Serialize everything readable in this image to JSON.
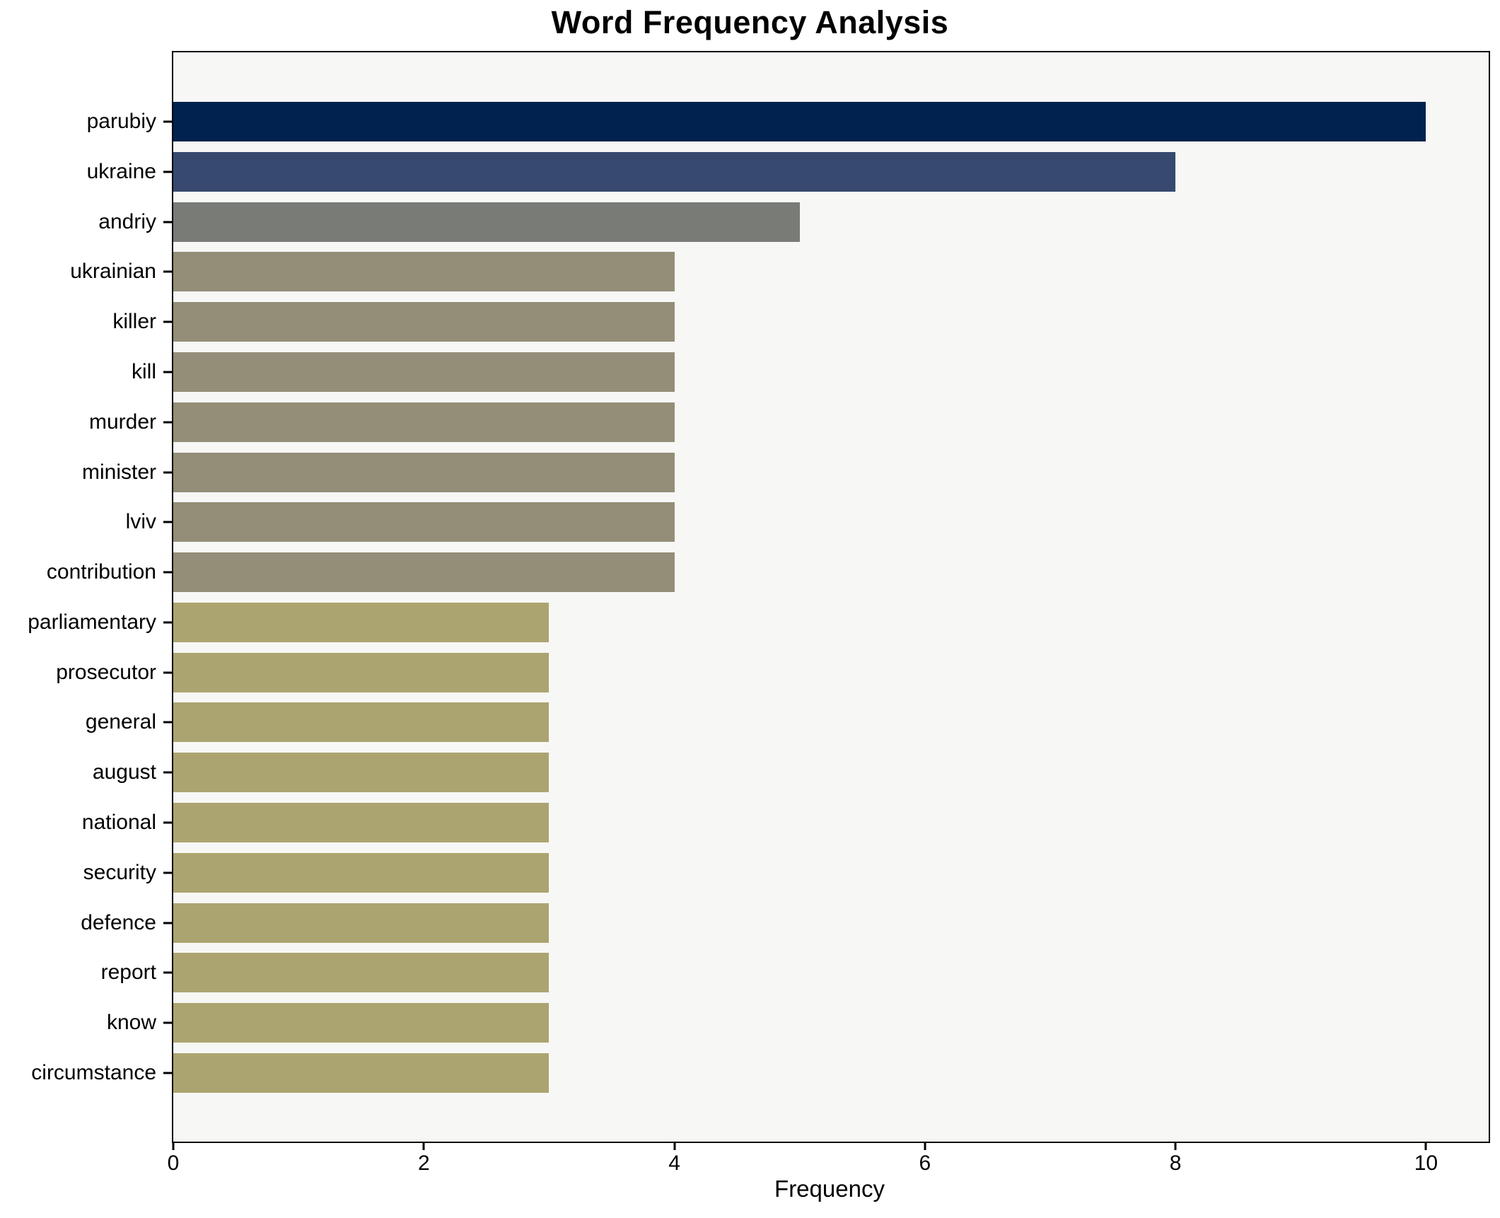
{
  "chart_data": {
    "type": "bar",
    "orientation": "horizontal",
    "title": "Word Frequency Analysis",
    "xlabel": "Frequency",
    "ylabel": "",
    "categories": [
      "parubiy",
      "ukraine",
      "andriy",
      "ukrainian",
      "killer",
      "kill",
      "murder",
      "minister",
      "lviv",
      "contribution",
      "parliamentary",
      "prosecutor",
      "general",
      "august",
      "national",
      "security",
      "defence",
      "report",
      "know",
      "circumstance"
    ],
    "values": [
      10,
      8,
      5,
      4,
      4,
      4,
      4,
      4,
      4,
      4,
      3,
      3,
      3,
      3,
      3,
      3,
      3,
      3,
      3,
      3
    ],
    "bar_colors": [
      "#01224e",
      "#37496e",
      "#797b77",
      "#948e78",
      "#948e78",
      "#948e78",
      "#948e78",
      "#948e78",
      "#948e78",
      "#948e78",
      "#aca470",
      "#aca470",
      "#aca470",
      "#aca470",
      "#aca470",
      "#aca470",
      "#aca470",
      "#aca470",
      "#aca470",
      "#aca470"
    ],
    "xlim": [
      0,
      10.5
    ],
    "xticks": [
      "0",
      "2",
      "4",
      "6",
      "8",
      "10"
    ],
    "xtick_values": [
      0,
      2,
      4,
      6,
      8,
      10
    ],
    "grid": false,
    "legend": "none",
    "plot_background": "#f7f7f5",
    "axis_color": "#000000",
    "text_color": "#000000"
  }
}
